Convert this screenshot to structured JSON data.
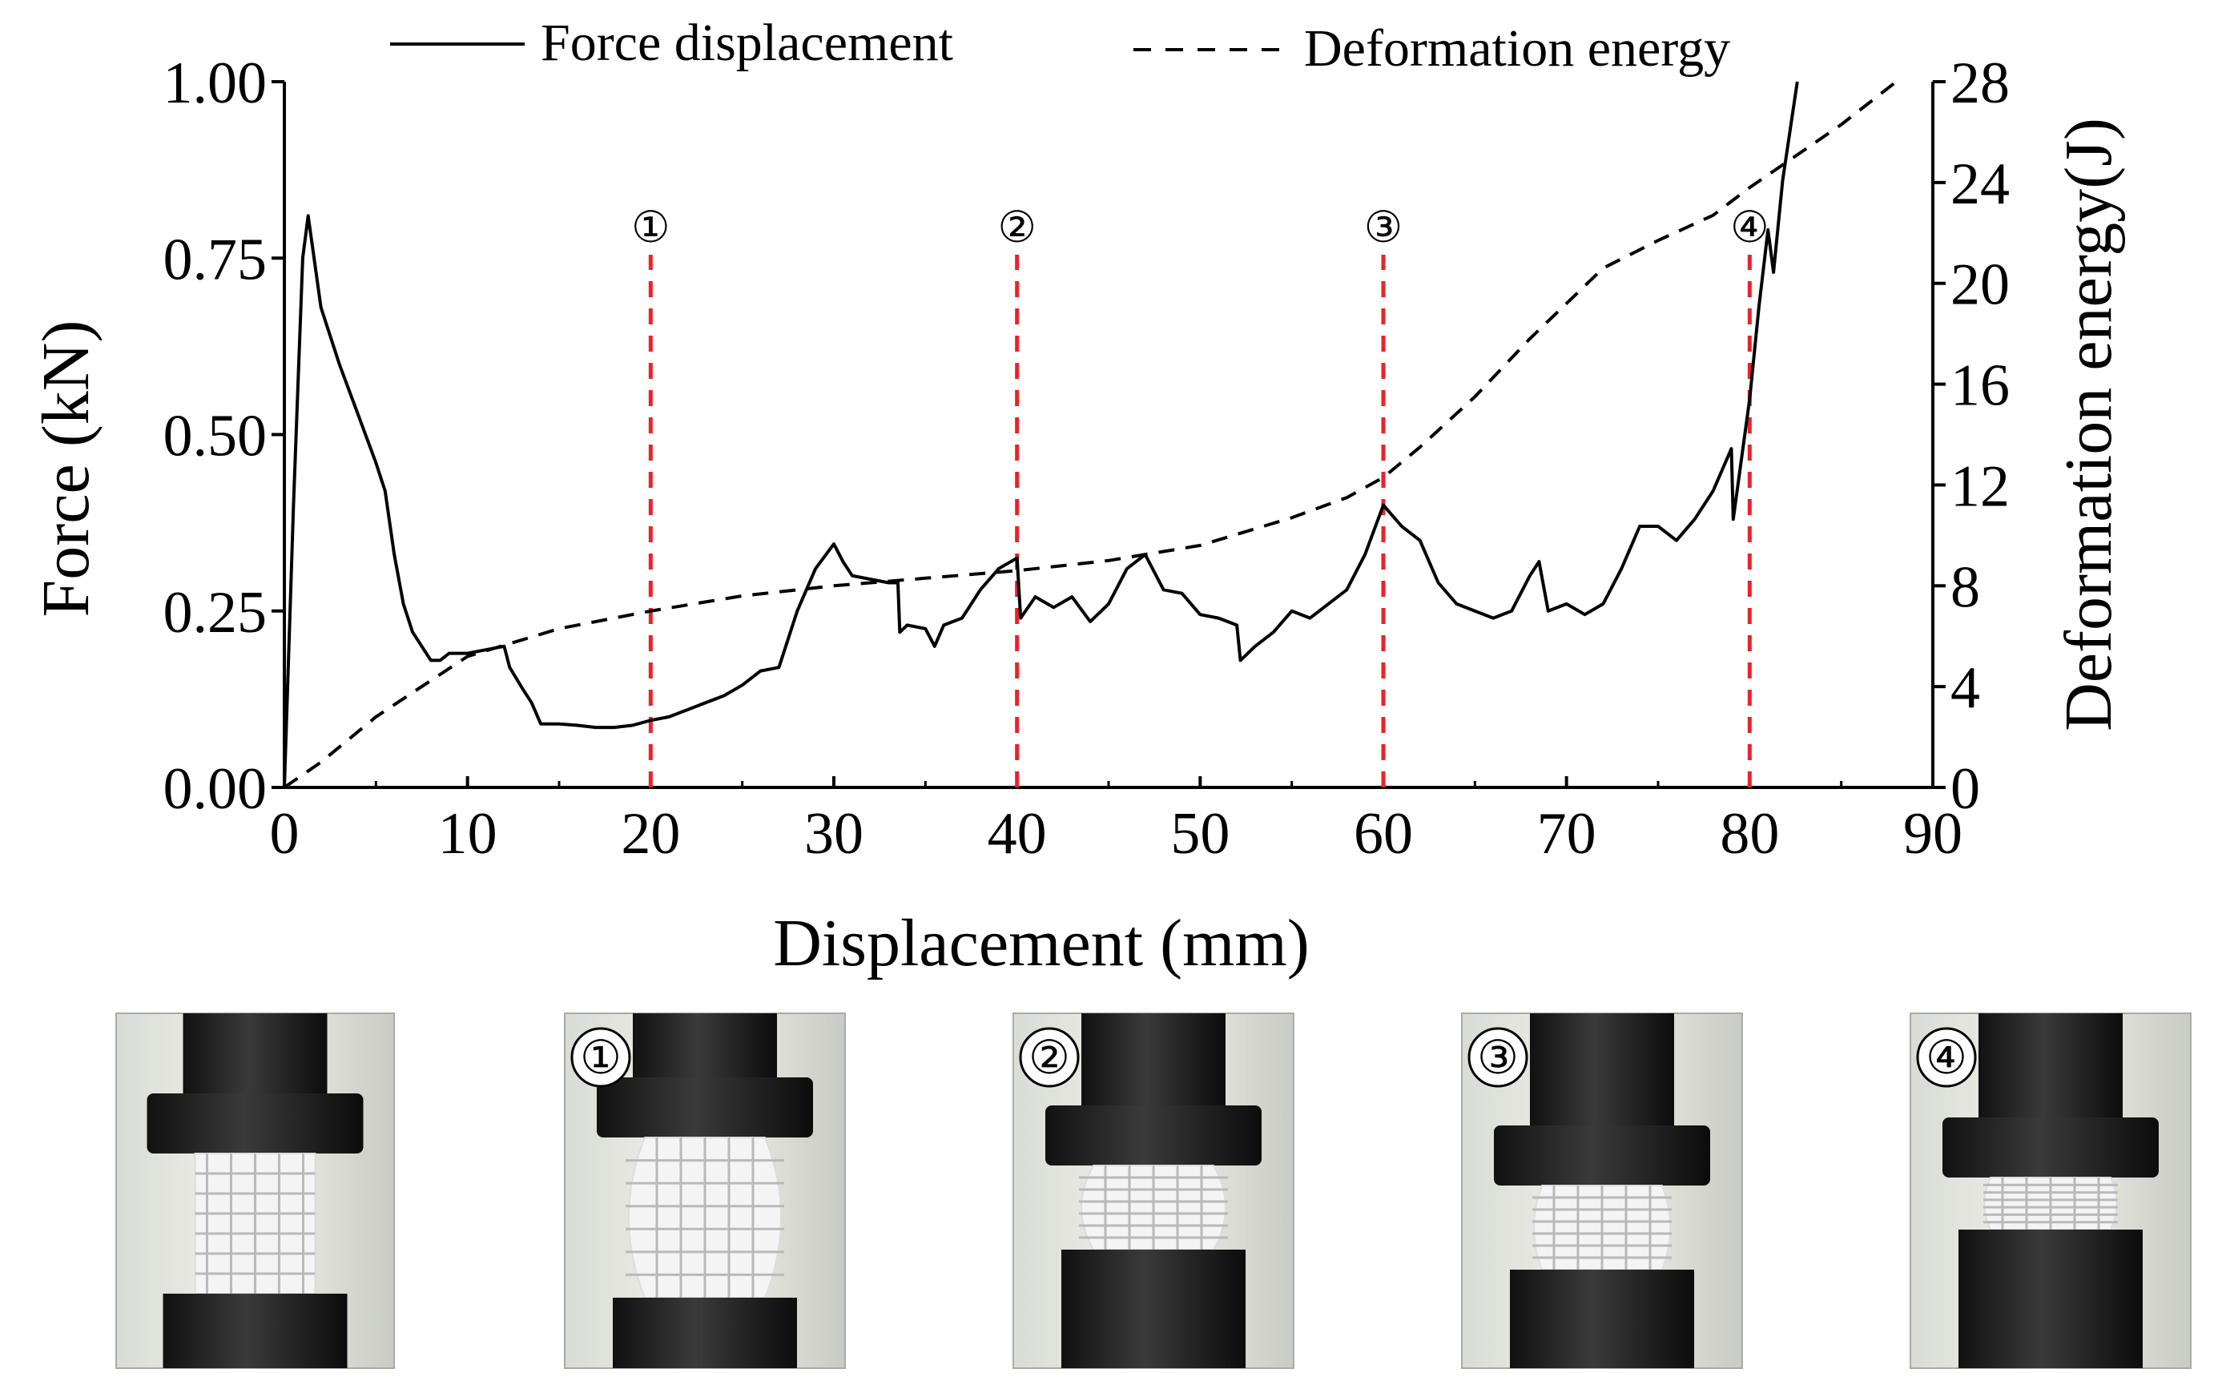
{
  "chart_data": {
    "type": "line",
    "xlabel": "Displacement (mm)",
    "ylabel": "Force (kN)",
    "y2label": "Deformation energy(J)",
    "xlim": [
      0,
      90
    ],
    "ylim": [
      0,
      1.0
    ],
    "y2lim": [
      0,
      28
    ],
    "x_ticks": [
      0,
      10,
      20,
      30,
      40,
      50,
      60,
      70,
      80,
      90
    ],
    "x_tick_labels": [
      "0",
      "10",
      "20",
      "30",
      "40",
      "50",
      "60",
      "70",
      "80",
      "90"
    ],
    "y_ticks": [
      0,
      0.25,
      0.5,
      0.75,
      1.0
    ],
    "y_tick_labels": [
      "0.00",
      "0.25",
      "0.50",
      "0.75",
      "1.00"
    ],
    "y2_ticks": [
      0,
      4,
      8,
      12,
      16,
      20,
      24,
      28
    ],
    "y2_tick_labels": [
      "0",
      "4",
      "8",
      "12",
      "16",
      "20",
      "24",
      "28"
    ],
    "legend": [
      "Force displacement",
      "Deformation energy"
    ],
    "legend_position": "top",
    "series": [
      {
        "name": "Force displacement",
        "axis": "left",
        "style": "solid",
        "color": "#000000",
        "x": [
          0,
          0.5,
          1.0,
          1.3,
          2,
          3,
          4,
          5,
          5.5,
          6,
          6.5,
          7,
          7.5,
          8,
          8.5,
          9,
          10,
          11,
          12,
          12.3,
          13,
          13.5,
          14,
          15,
          16,
          17,
          18,
          19,
          20,
          21,
          22,
          23,
          24,
          25,
          26,
          27,
          28,
          29,
          30,
          30.5,
          31,
          32,
          33,
          33.5,
          33.6,
          34,
          35,
          35.5,
          36,
          37,
          38,
          39,
          40,
          40.2,
          41,
          42,
          43,
          44,
          45,
          46,
          47,
          48,
          49,
          50,
          51,
          52,
          52.2,
          53,
          54,
          55,
          56,
          57,
          58,
          59,
          60,
          61,
          62,
          63,
          64,
          65,
          66,
          67,
          68,
          68.5,
          69,
          70,
          71,
          72,
          73,
          74,
          75,
          76,
          77,
          78,
          79,
          79.1,
          80,
          80.5,
          81,
          81.3,
          81.8,
          82.6
        ],
        "values": [
          0,
          0.4,
          0.75,
          0.81,
          0.68,
          0.6,
          0.53,
          0.46,
          0.42,
          0.33,
          0.26,
          0.22,
          0.2,
          0.18,
          0.18,
          0.19,
          0.19,
          0.195,
          0.2,
          0.17,
          0.14,
          0.12,
          0.09,
          0.09,
          0.088,
          0.085,
          0.085,
          0.088,
          0.095,
          0.1,
          0.11,
          0.12,
          0.13,
          0.145,
          0.165,
          0.17,
          0.25,
          0.31,
          0.345,
          0.32,
          0.3,
          0.295,
          0.29,
          0.29,
          0.22,
          0.23,
          0.225,
          0.2,
          0.23,
          0.24,
          0.28,
          0.31,
          0.325,
          0.24,
          0.27,
          0.255,
          0.27,
          0.235,
          0.26,
          0.31,
          0.33,
          0.28,
          0.275,
          0.245,
          0.24,
          0.23,
          0.18,
          0.2,
          0.22,
          0.25,
          0.24,
          0.26,
          0.28,
          0.33,
          0.4,
          0.37,
          0.35,
          0.29,
          0.26,
          0.25,
          0.24,
          0.25,
          0.3,
          0.32,
          0.25,
          0.26,
          0.245,
          0.26,
          0.31,
          0.37,
          0.37,
          0.35,
          0.38,
          0.42,
          0.48,
          0.38,
          0.55,
          0.68,
          0.79,
          0.73,
          0.86,
          1.0
        ]
      },
      {
        "name": "Deformation energy",
        "axis": "right",
        "style": "dashed",
        "color": "#000000",
        "x": [
          0,
          2,
          5,
          10,
          15,
          20,
          25,
          30,
          35,
          40,
          45,
          50,
          55,
          58,
          60,
          62,
          65,
          68,
          72,
          75,
          78,
          80,
          82,
          85,
          88
        ],
        "values": [
          0,
          1.0,
          2.8,
          5.2,
          6.3,
          7.0,
          7.6,
          8.0,
          8.3,
          8.6,
          9.0,
          9.6,
          10.7,
          11.5,
          12.3,
          13.5,
          15.5,
          17.8,
          20.6,
          21.7,
          22.7,
          23.8,
          24.8,
          26.3,
          28.0
        ]
      }
    ],
    "annotations": [
      {
        "label": "①",
        "x": 20
      },
      {
        "label": "②",
        "x": 40
      },
      {
        "label": "③",
        "x": 60
      },
      {
        "label": "④",
        "x": 80
      }
    ],
    "annotation_line_color": "#e8232a",
    "photos": [
      {
        "badge": ""
      },
      {
        "badge": "①"
      },
      {
        "badge": "②"
      },
      {
        "badge": "③"
      },
      {
        "badge": "④"
      }
    ]
  }
}
